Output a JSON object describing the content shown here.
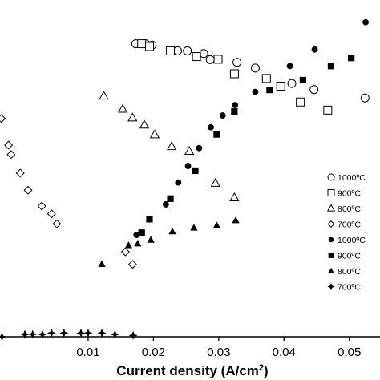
{
  "chart_data": {
    "type": "scatter",
    "title": "",
    "xlabel": "Current density (A/cm",
    "xlabel_sup": "2",
    "xlabel_end": ")",
    "ylabel": "",
    "xlim": [
      -0.0035,
      0.0547
    ],
    "ylim": [
      0,
      1
    ],
    "x_ticks": [
      0.01,
      0.02,
      0.03,
      0.04,
      0.05
    ],
    "x_tick_labels": [
      "0.01",
      "0.02",
      "0.03",
      "0.04",
      "0.05"
    ],
    "grid": false,
    "legend_position": "right",
    "series": [
      {
        "name": "1000ºC",
        "marker": "circle",
        "filled": false,
        "x": [
          0.0173,
          0.0188,
          0.0198,
          0.0237,
          0.0252,
          0.0277,
          0.0287,
          0.0328,
          0.0356,
          0.0412,
          0.0446,
          0.0524
        ],
        "y": [
          0.87,
          0.87,
          0.866,
          0.849,
          0.849,
          0.841,
          0.823,
          0.815,
          0.798,
          0.752,
          0.734,
          0.709
        ]
      },
      {
        "name": "900ºC",
        "marker": "square",
        "filled": false,
        "x": [
          0.0182,
          0.0194,
          0.0226,
          0.0266,
          0.0299,
          0.0324,
          0.0373,
          0.0395,
          0.0425,
          0.0467
        ],
        "y": [
          0.87,
          0.862,
          0.849,
          0.832,
          0.824,
          0.781,
          0.767,
          0.744,
          0.697,
          0.673
        ]
      },
      {
        "name": "800ºC",
        "marker": "triangle",
        "filled": false,
        "x": [
          0.0124,
          0.0153,
          0.0168,
          0.0186,
          0.0202,
          0.0228,
          0.0255,
          0.0295,
          0.0324
        ],
        "y": [
          0.715,
          0.676,
          0.65,
          0.629,
          0.6,
          0.565,
          0.551,
          0.456,
          0.413
        ]
      },
      {
        "name": "700ºC",
        "marker": "diamond",
        "filled": false,
        "x": [
          -0.0033,
          -0.0022,
          -0.0018,
          -0.0004,
          0.0008,
          0.0029,
          0.0044,
          0.0052,
          0.0157,
          0.0168
        ],
        "y": [
          0.648,
          0.569,
          0.541,
          0.486,
          0.435,
          0.388,
          0.365,
          0.335,
          0.252,
          0.215
        ]
      },
      {
        "name": "1000ºC",
        "marker": "circle",
        "filled": true,
        "x": [
          0.0174,
          0.0219,
          0.0238,
          0.0253,
          0.027,
          0.0288,
          0.0306,
          0.0325,
          0.0356,
          0.0409,
          0.0447,
          0.0525
        ],
        "y": [
          0.302,
          0.393,
          0.458,
          0.507,
          0.56,
          0.622,
          0.657,
          0.688,
          0.727,
          0.804,
          0.853,
          0.934
        ]
      },
      {
        "name": "900ºC",
        "marker": "square",
        "filled": true,
        "x": [
          0.0182,
          0.0194,
          0.0226,
          0.0264,
          0.0297,
          0.0324,
          0.0378,
          0.0429,
          0.0472,
          0.0503
        ],
        "y": [
          0.309,
          0.349,
          0.41,
          0.493,
          0.601,
          0.669,
          0.733,
          0.762,
          0.804,
          0.828
        ]
      },
      {
        "name": "800ºC",
        "marker": "triangle",
        "filled": true,
        "x": [
          0.0121,
          0.0162,
          0.0176,
          0.0196,
          0.0229,
          0.0262,
          0.0297,
          0.0326
        ],
        "y": [
          0.215,
          0.271,
          0.276,
          0.287,
          0.312,
          0.323,
          0.33,
          0.345
        ]
      },
      {
        "name": "700ºC",
        "marker": "star",
        "filled": true,
        "x": [
          -0.0032,
          0.0003,
          0.0015,
          0.003,
          0.0044,
          0.0063,
          0.0089,
          0.01,
          0.0121,
          0.0141,
          0.0169
        ],
        "y": [
          0.0,
          0.007,
          0.007,
          0.007,
          0.011,
          0.011,
          0.011,
          0.011,
          0.011,
          0.007,
          0.004
        ]
      }
    ]
  },
  "legend": {
    "items": [
      {
        "symbol": "circle-open",
        "label": "1000ºC"
      },
      {
        "symbol": "square-open",
        "label": "900ºC"
      },
      {
        "symbol": "triangle-open",
        "label": "800ºC"
      },
      {
        "symbol": "diamond-open",
        "label": "700ºC"
      },
      {
        "symbol": "circle-filled",
        "label": "1000ºC"
      },
      {
        "symbol": "square-filled",
        "label": "900ºC"
      },
      {
        "symbol": "triangle-filled",
        "label": "800ºC"
      },
      {
        "symbol": "star-filled",
        "label": "700ºC"
      }
    ]
  },
  "colors": {
    "marker": "#000000",
    "axis": "#000000",
    "background": "#ffffff"
  }
}
